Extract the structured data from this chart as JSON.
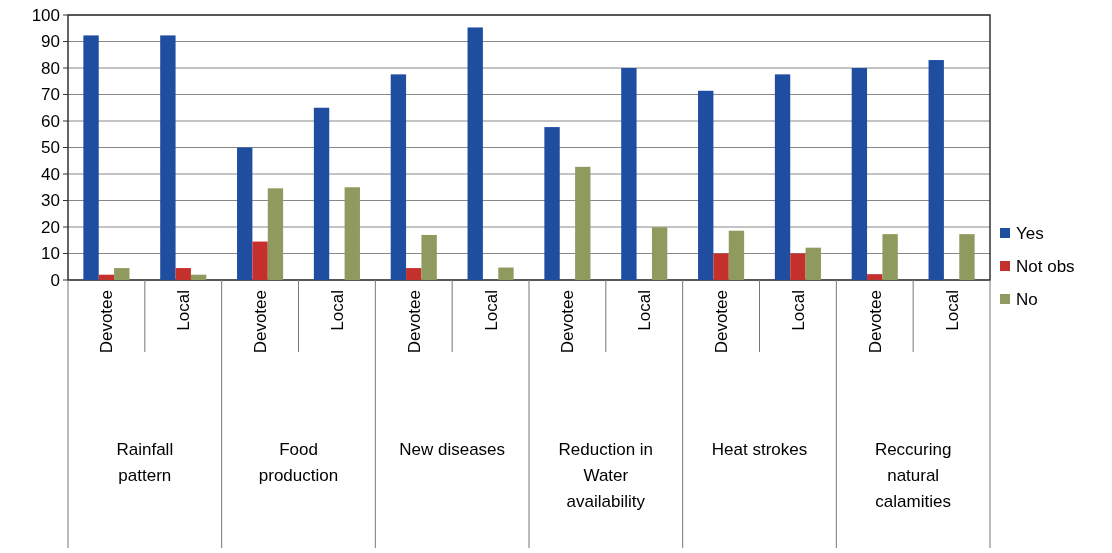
{
  "chart_data": {
    "type": "bar",
    "categories": [
      "Devotee",
      "Local",
      "Devotee",
      "Local",
      "Devotee",
      "Local",
      "Devotee",
      "Local",
      "Devotee",
      "Local",
      "Devotee",
      "Local"
    ],
    "series": [
      {
        "name": "Yes",
        "color": "#1f4ea0",
        "values": [
          92.3,
          92.3,
          50,
          65,
          77.6,
          95.3,
          57.7,
          80,
          71.4,
          77.6,
          80,
          83
        ]
      },
      {
        "name": "Not obs",
        "color": "#c4302b",
        "values": [
          2,
          4.5,
          14.5,
          0,
          4.5,
          0,
          0,
          0,
          10,
          10,
          2.2,
          0
        ]
      },
      {
        "name": "No",
        "color": "#8f9a5e",
        "values": [
          4.5,
          2,
          34.6,
          35,
          17,
          4.7,
          42.7,
          19.9,
          18.6,
          12.2,
          17.3,
          17.3
        ]
      }
    ],
    "annotations": [
      "Rainfall\npattern",
      "Food\nproduction",
      "New diseases",
      "Reduction in\nWater\navailability",
      "Heat strokes",
      "Reccuring\nnatural\ncalamities"
    ],
    "ylim": [
      0,
      100
    ],
    "yticks": [
      0,
      10,
      20,
      30,
      40,
      50,
      60,
      70,
      80,
      90,
      100
    ],
    "grid": "y",
    "legend": "right"
  }
}
